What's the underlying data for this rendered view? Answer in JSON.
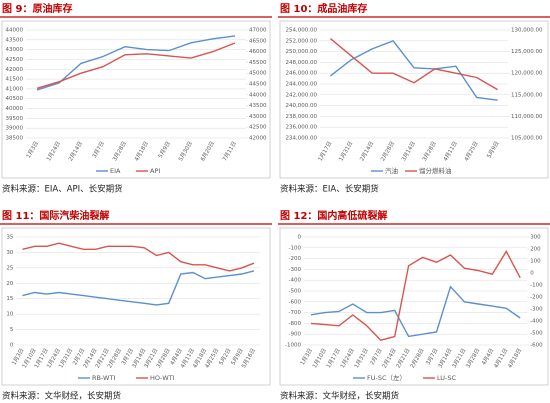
{
  "chart_data": [
    {
      "type": "line",
      "title": "图 9：原油库存",
      "source": "资料来源：EIA、API、长安期货",
      "categories": [
        "1月3日",
        "1月24日",
        "2月14日",
        "3月7日",
        "3月28日",
        "4月18日",
        "5月9日",
        "5月30日",
        "6月20日",
        "7月11日"
      ],
      "series": [
        {
          "name": "EIA",
          "color": "#5b8fd0",
          "values": [
            40950,
            41300,
            42300,
            42650,
            43150,
            43000,
            42950,
            43350,
            43550,
            43700
          ]
        },
        {
          "name": "API",
          "color": "#d9534f",
          "axis": "y2",
          "values": [
            44300,
            44600,
            45000,
            45300,
            45850,
            45900,
            45800,
            45700,
            46000,
            46400
          ]
        }
      ],
      "ylim": [
        38500,
        44000
      ],
      "yticks": [
        38500,
        39000,
        39500,
        40000,
        40500,
        41000,
        41500,
        42000,
        42500,
        43000,
        43500,
        44000
      ],
      "y2lim": [
        42000,
        47000
      ],
      "y2ticks": [
        42000,
        42500,
        43000,
        43500,
        44000,
        44500,
        45000,
        45500,
        46000,
        46500,
        47000
      ]
    },
    {
      "type": "line",
      "title": "图 10：成品油库存",
      "source": "资料来源：EIA、长安期货",
      "categories": [
        "1月17日",
        "1月31日",
        "2月14日",
        "2月28日",
        "3月14日",
        "3月28日",
        "4月11日",
        "4月25日",
        "5月9日"
      ],
      "series": [
        {
          "name": "汽油",
          "color": "#5b8fd0",
          "values": [
            245500,
            248500,
            250500,
            252000,
            247000,
            246800,
            247300,
            241500,
            241000
          ]
        },
        {
          "name": "馏分燃料油",
          "color": "#d9534f",
          "axis": "y2",
          "values": [
            128000,
            124000,
            120000,
            120000,
            117800,
            121000,
            120000,
            119000,
            116200
          ]
        }
      ],
      "ylim": [
        234000,
        254000
      ],
      "yticks": [
        {
          "value": 234000,
          "label": "234,000.00"
        },
        {
          "value": 236000,
          "label": "236,000.00"
        },
        {
          "value": 238000,
          "label": "238,000.00"
        },
        {
          "value": 240000,
          "label": "240,000.00"
        },
        {
          "value": 242000,
          "label": "242,000.00"
        },
        {
          "value": 244000,
          "label": "244,000.00"
        },
        {
          "value": 246000,
          "label": "246,000.00"
        },
        {
          "value": 248000,
          "label": "248,000.00"
        },
        {
          "value": 250000,
          "label": "250,000.00"
        },
        {
          "value": 252000,
          "label": "252,000.00"
        },
        {
          "value": 254000,
          "label": "254,000.00"
        }
      ],
      "y2lim": [
        105000,
        130000
      ],
      "y2ticks": [
        {
          "value": 105000,
          "label": "105,000.00"
        },
        {
          "value": 110000,
          "label": "110,000.00"
        },
        {
          "value": 115000,
          "label": "115,000.00"
        },
        {
          "value": 120000,
          "label": "120,000.00"
        },
        {
          "value": 125000,
          "label": "125,000.00"
        },
        {
          "value": 130000,
          "label": "130,000.00"
        }
      ]
    },
    {
      "type": "line",
      "title": "图 11：国际汽柴油裂解",
      "source": "资料来源：文华财经，长安期货",
      "categories": [
        "1月3日",
        "1月10日",
        "1月17日",
        "1月24日",
        "1月31日",
        "2月7日",
        "2月14日",
        "2月21日",
        "2月28日",
        "3月7日",
        "3月14日",
        "3月21日",
        "3月28日",
        "4月4日",
        "4月11日",
        "4月18日",
        "4月25日",
        "5月2日",
        "5月9日",
        "5月16日"
      ],
      "series": [
        {
          "name": "RB-WTI",
          "color": "#5b8fd0",
          "values": [
            16,
            17,
            16.5,
            17,
            16.5,
            16,
            15.5,
            15,
            14.5,
            14,
            13.5,
            13,
            13.5,
            23,
            23.5,
            21.5,
            22,
            22.5,
            23,
            24
          ]
        },
        {
          "name": "HO-WTI",
          "color": "#d9534f",
          "values": [
            31,
            32,
            32,
            33,
            32,
            31,
            31,
            32,
            32,
            32,
            31.5,
            29,
            30,
            27,
            26,
            26,
            25,
            24,
            25,
            26.5
          ]
        }
      ],
      "ylim": [
        0,
        35
      ],
      "yticks": [
        0,
        5,
        10,
        15,
        20,
        25,
        30,
        35
      ]
    },
    {
      "type": "line",
      "title": "图 12：国内高低硫裂解",
      "source": "资料来源：文华财经，长安期货",
      "categories": [
        "1月3日",
        "1月10日",
        "1月17日",
        "1月24日",
        "1月31日",
        "2月7日",
        "2月14日",
        "2月21日",
        "2月28日",
        "3月7日",
        "3月14日",
        "3月21日",
        "3月28日",
        "4月4日",
        "4月11日",
        "4月18日"
      ],
      "series": [
        {
          "name": "FU-SC（左）",
          "color": "#5b8fd0",
          "values": [
            -720,
            -700,
            -690,
            -620,
            -700,
            -700,
            -680,
            -920,
            -900,
            -880,
            -460,
            -600,
            -620,
            -640,
            -660,
            -750
          ]
        },
        {
          "name": "LU-SC",
          "color": "#d9534f",
          "axis": "y2",
          "values": [
            -420,
            -430,
            -440,
            -350,
            -440,
            -560,
            -530,
            60,
            130,
            90,
            150,
            40,
            20,
            -10,
            180,
            -40
          ]
        }
      ],
      "ylim": [
        -1000,
        0
      ],
      "yticks": [
        -1000,
        -900,
        -800,
        -700,
        -600,
        -500,
        -400,
        -300,
        -200,
        -100,
        0
      ],
      "y2lim": [
        -600,
        300
      ],
      "y2ticks": [
        -600,
        -500,
        -400,
        -300,
        -200,
        -100,
        0,
        100,
        200,
        300
      ]
    }
  ]
}
